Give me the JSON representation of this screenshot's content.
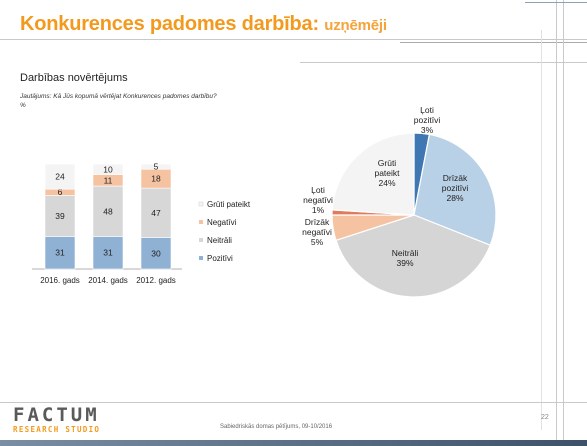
{
  "slide": {
    "title": "Konkurences padomes darbība:",
    "title_sub": "uzņēmēji",
    "section_title": "Darbības novērtējums",
    "question": "Jautājums: Kā Jūs kopumā vērtējat Konkurences padomes darbību?",
    "unit": "%",
    "footer_text": "Sabiedriskās domas pētījums, 09-10/2016",
    "page_number": "22",
    "logo_main": "FACTUM",
    "logo_sub": "RESEARCH STUDIO"
  },
  "colors": {
    "title": "#f39a1e",
    "pozitivi": "#8fb1d3",
    "neitrali": "#d7d7d7",
    "negativi": "#f6c3a2",
    "gruti": "#f4f4f4",
    "loti_pozitivi": "#3f77b3",
    "drizak_pozitivi": "#b9d1e6",
    "neitrali_pie": "#d5d5d5",
    "drizak_negativi": "#f6c3a2",
    "loti_negativi": "#e07b5c",
    "gruti_pie": "#f4f4f4"
  },
  "chart_data": [
    {
      "type": "bar",
      "stacked": true,
      "categories": [
        "2016. gads",
        "2014. gads",
        "2012. gads"
      ],
      "series": [
        {
          "name": "Pozitīvi",
          "values": [
            31,
            31,
            30
          ]
        },
        {
          "name": "Neitrāli",
          "values": [
            39,
            48,
            47
          ]
        },
        {
          "name": "Negatīvi",
          "values": [
            6,
            11,
            18
          ]
        },
        {
          "name": "Grūti pateikt",
          "values": [
            24,
            10,
            5
          ]
        }
      ],
      "legend_position": "right",
      "ylim": [
        0,
        100
      ]
    },
    {
      "type": "pie",
      "slices": [
        {
          "label": "Ļoti pozitīvi",
          "value": 3
        },
        {
          "label": "Drīzāk pozitīvi",
          "value": 28
        },
        {
          "label": "Neitrāli",
          "value": 39
        },
        {
          "label": "Drīzāk negatīvi",
          "value": 5
        },
        {
          "label": "Ļoti negatīvi",
          "value": 1
        },
        {
          "label": "Grūti pateikt",
          "value": 24
        }
      ]
    }
  ]
}
